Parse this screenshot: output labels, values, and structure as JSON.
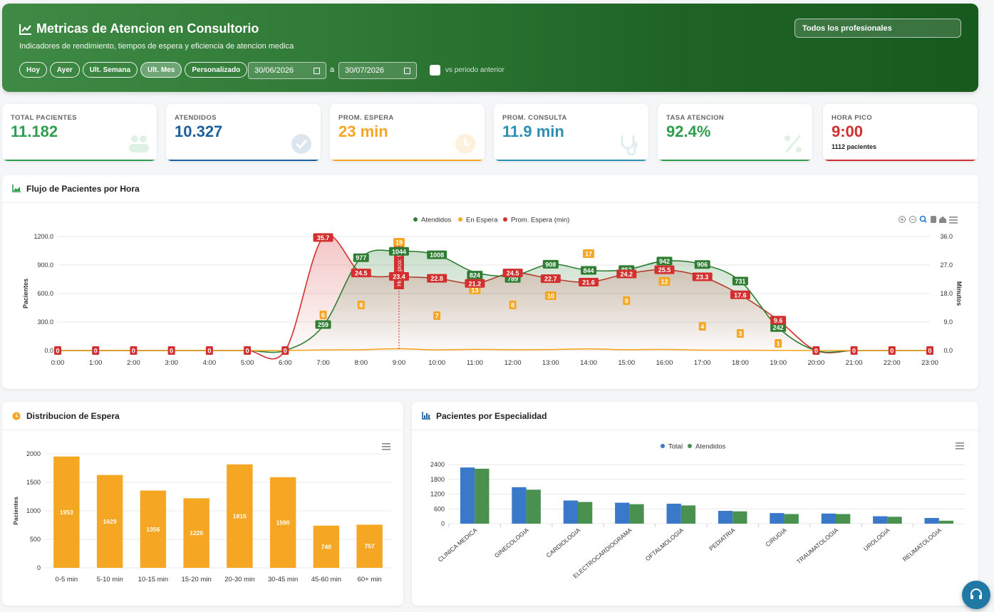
{
  "header": {
    "title": "Metricas de Atencion en Consultorio",
    "subtitle": "Indicadores de rendimiento, tiempos de espera y eficiencia de atencion medica",
    "period_buttons": [
      "Hoy",
      "Ayer",
      "Ult. Semana",
      "Ult. Mes",
      "Personalizado"
    ],
    "active_period": "Ult. Mes",
    "date_from": "30/06/2026",
    "date_sep": "a",
    "date_to": "30/07/2026",
    "compare_label": "vs periodo anterior",
    "professional_select": "Todos los profesionales"
  },
  "kpis": [
    {
      "label": "TOTAL PACIENTES",
      "value": "11.182",
      "color": "#2e9e4e",
      "icon": "users-icon"
    },
    {
      "label": "ATENDIDOS",
      "value": "10.327",
      "color": "#1d5f9c",
      "icon": "check-circle-icon"
    },
    {
      "label": "PROM. ESPERA",
      "value": "23 min",
      "color": "#f5a623",
      "icon": "clock-icon"
    },
    {
      "label": "PROM. CONSULTA",
      "value": "11.9 min",
      "color": "#2a8fb0",
      "icon": "stethoscope-icon"
    },
    {
      "label": "TASA ATENCION",
      "value": "92.4%",
      "color": "#2e9e4e",
      "icon": "percent-icon"
    },
    {
      "label": "HORA PICO",
      "value": "9:00",
      "extra": "1112 pacientes",
      "color": "#d32f2f",
      "icon": "fire-icon"
    }
  ],
  "flow_panel": {
    "title": "Flujo de Pacientes por Hora"
  },
  "wait_panel": {
    "title": "Distribucion de Espera"
  },
  "spec_panel": {
    "title": "Pacientes por Especialidad"
  },
  "chart_data": [
    {
      "type": "line",
      "title": "Flujo de Pacientes por Hora",
      "x": [
        "0:00",
        "1:00",
        "2:00",
        "3:00",
        "4:00",
        "5:00",
        "6:00",
        "7:00",
        "8:00",
        "9:00",
        "10:00",
        "11:00",
        "12:00",
        "13:00",
        "14:00",
        "15:00",
        "16:00",
        "17:00",
        "18:00",
        "19:00",
        "20:00",
        "21:00",
        "22:00",
        "23:00"
      ],
      "ylabel": "Pacientes",
      "y2label": "Minutos",
      "ylim": [
        0,
        1200
      ],
      "y2lim": [
        0,
        36
      ],
      "yticks": [
        "0.0",
        "300.0",
        "600.0",
        "900.0",
        "1200.0"
      ],
      "y2ticks": [
        "0.0",
        "9.0",
        "18.0",
        "27.0",
        "36.0"
      ],
      "legend_position": "top-center",
      "annotation": "Hora pico: 9:00",
      "series": [
        {
          "name": "Atendidos",
          "color": "#2e7d32",
          "axis": "left",
          "values": [
            0,
            0,
            0,
            0,
            0,
            0,
            0,
            259,
            977,
            1044,
            1008,
            824,
            789,
            908,
            844,
            852,
            942,
            906,
            731,
            242,
            0,
            0,
            0,
            0
          ]
        },
        {
          "name": "En Espera",
          "color": "#f5a623",
          "axis": "left",
          "values": [
            0,
            0,
            0,
            0,
            0,
            0,
            0,
            6,
            8,
            19,
            7,
            13,
            8,
            10,
            17,
            9,
            12,
            4,
            3,
            1,
            0,
            0,
            0,
            0
          ]
        },
        {
          "name": "Prom. Espera (min)",
          "color": "#d32f2f",
          "axis": "right",
          "values": [
            0,
            0,
            0,
            0,
            0,
            0,
            0,
            35.7,
            24.5,
            23.4,
            22.8,
            21.2,
            24.5,
            22.7,
            21.6,
            24.2,
            25.5,
            23.3,
            17.6,
            9.6,
            0,
            0,
            0,
            0
          ]
        }
      ]
    },
    {
      "type": "bar",
      "title": "Distribucion de Espera",
      "categories": [
        "0-5 min",
        "5-10 min",
        "10-15 min",
        "15-20 min",
        "20-30 min",
        "30-45 min",
        "45-60 min",
        "60+ min"
      ],
      "values": [
        1953,
        1629,
        1356,
        1220,
        1815,
        1590,
        740,
        757
      ],
      "ylabel": "Pacientes",
      "ylim": [
        0,
        2000
      ],
      "yticks": [
        "0",
        "500",
        "1000",
        "1500",
        "2000"
      ],
      "color": "#f5a623"
    },
    {
      "type": "bar",
      "title": "Pacientes por Especialidad",
      "categories": [
        "CLINICA MEDICA",
        "GINECOLOGIA",
        "CARDIOLOGIA",
        "ELECTROCARDIOGRAMA",
        "OFTALMOLOGIA",
        "PEDIATRIA",
        "CIRUGIA",
        "TRAUMATOLOGIA",
        "UROLOGIA",
        "REUMATOLOGIA"
      ],
      "ylim": [
        0,
        2400
      ],
      "yticks": [
        "0",
        "600",
        "1200",
        "1800",
        "2400"
      ],
      "legend_position": "top-center",
      "series": [
        {
          "name": "Total",
          "color": "#3a78c9",
          "values": [
            2280,
            1480,
            940,
            850,
            810,
            520,
            430,
            410,
            300,
            230
          ]
        },
        {
          "name": "Atendidos",
          "color": "#4a9150",
          "values": [
            2230,
            1380,
            880,
            790,
            740,
            500,
            390,
            390,
            280,
            120
          ]
        }
      ]
    }
  ]
}
